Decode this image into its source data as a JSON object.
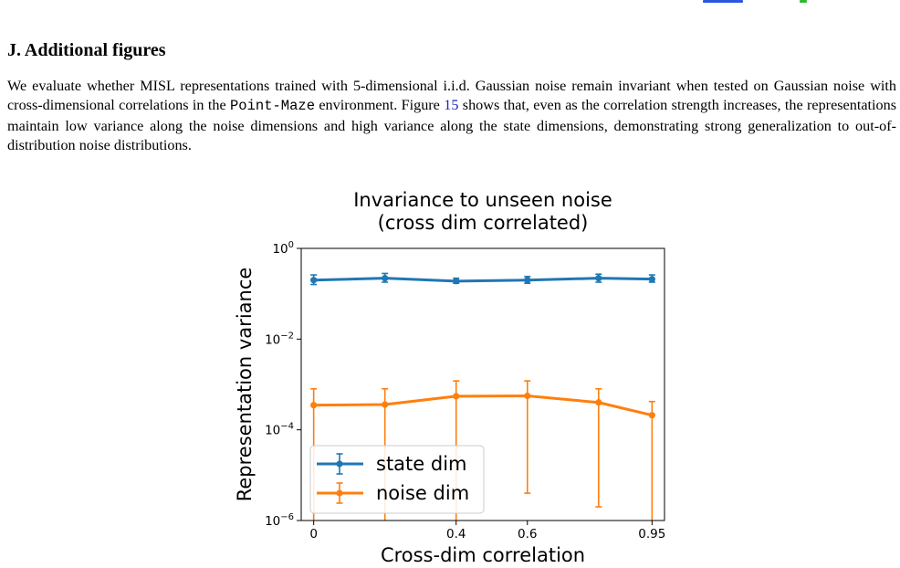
{
  "section": {
    "heading": "J. Additional figures"
  },
  "paragraph": {
    "part1": "We evaluate whether MISL representations trained with 5-dimensional i.i.d. Gaussian noise remain invariant when tested on Gaussian noise with cross-dimensional correlations in the ",
    "env_name": "Point-Maze",
    "part2": " environment. Figure ",
    "figure_ref": "15",
    "part3": " shows that, even as the correlation strength increases, the representations maintain low variance along the noise dimensions and high variance along the state dimensions, demonstrating strong generalization to out-of-distribution noise distributions."
  },
  "colors": {
    "state": "#1f77b4",
    "noise": "#ff7f0e",
    "link": "#2020c8"
  },
  "chart_data": {
    "type": "line",
    "title_line1": "Invariance to unseen noise",
    "title_line2": "(cross dim correlated)",
    "xlabel": "Cross-dim correlation",
    "ylabel": "Representation variance",
    "x": [
      0,
      0.2,
      0.4,
      0.6,
      0.8,
      0.95
    ],
    "x_tick_values": [
      0,
      0.4,
      0.6,
      0.95
    ],
    "x_tick_labels": [
      "0",
      "0.4",
      "0.6",
      "0.95"
    ],
    "xlim": [
      -0.035,
      0.985
    ],
    "yscale": "log",
    "ylim": [
      1e-06,
      1
    ],
    "y_tick_values": [
      1,
      0.01,
      0.0001,
      1e-06
    ],
    "y_tick_bases": [
      "10",
      "10",
      "10",
      "10"
    ],
    "y_tick_exponents": [
      "0",
      "−2",
      "−4",
      "−6"
    ],
    "grid": false,
    "legend_position": "lower-left",
    "series": [
      {
        "name": "state dim",
        "values": [
          0.2,
          0.22,
          0.19,
          0.2,
          0.22,
          0.21
        ],
        "err_low": [
          0.16,
          0.18,
          0.17,
          0.17,
          0.18,
          0.18
        ],
        "err_high": [
          0.26,
          0.28,
          0.22,
          0.24,
          0.27,
          0.26
        ]
      },
      {
        "name": "noise dim",
        "values": [
          0.00035,
          0.00036,
          0.00055,
          0.00056,
          0.0004,
          0.00021
        ],
        "err_low": [
          1e-07,
          1e-07,
          1e-07,
          4e-06,
          2e-06,
          7e-07
        ],
        "err_high": [
          0.0008,
          0.0008,
          0.0012,
          0.0012,
          0.0008,
          0.00042
        ]
      }
    ]
  }
}
